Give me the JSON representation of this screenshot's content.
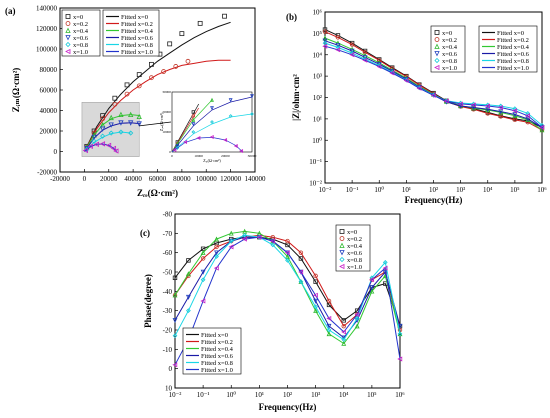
{
  "series_names": [
    "x=0",
    "x=0.2",
    "x=0.4",
    "x=0.6",
    "x=0.8",
    "x=1.0"
  ],
  "fit_names": [
    "Fitted x=0",
    "Fitted x=0.2",
    "Fitted x=0.4",
    "Fitted x=0.6",
    "Fitted x=0.8",
    "Fitted x=1.0"
  ],
  "colors": [
    "#222222",
    "#c0392b",
    "#2eb82e",
    "#1f3fbf",
    "#14c8d8",
    "#c81ec8"
  ],
  "fit_colors": [
    "#111111",
    "#d11a1a",
    "#32c832",
    "#1a1aa6",
    "#19d6e6",
    "#2233cc"
  ],
  "markers": [
    "square",
    "circle",
    "triangle-up",
    "triangle-down",
    "diamond",
    "triangle-left"
  ],
  "chart_data": [
    {
      "panel": "(a)",
      "type": "scatter",
      "xlabel": "Z_re(Ω·cm²)",
      "ylabel": "Z_im(Ω·cm²)",
      "xlim": [
        -20000,
        140000
      ],
      "ylim": [
        -20000,
        140000
      ],
      "xticks": [
        "-20000",
        "0",
        "20000",
        "40000",
        "60000",
        "80000",
        "100000",
        "120000",
        "140000"
      ],
      "yticks": [
        "-20000",
        "0",
        "20000",
        "40000",
        "60000",
        "80000",
        "100000",
        "120000",
        "140000"
      ],
      "legend_placement": "top-left",
      "series": [
        {
          "name": "x=0",
          "points": [
            [
              2000,
              5000
            ],
            [
              8000,
              20000
            ],
            [
              15000,
              35000
            ],
            [
              25000,
              52000
            ],
            [
              35000,
              65000
            ],
            [
              45000,
              75000
            ],
            [
              55000,
              85000
            ],
            [
              62000,
              95000
            ],
            [
              70000,
              105000
            ],
            [
              80000,
              115000
            ],
            [
              95000,
              125000
            ],
            [
              115000,
              132000
            ]
          ],
          "fit": [
            [
              0,
              0
            ],
            [
              10000,
              24000
            ],
            [
              20000,
              42000
            ],
            [
              30000,
              56000
            ],
            [
              40000,
              68000
            ],
            [
              50000,
              78000
            ],
            [
              60000,
              88000
            ],
            [
              70000,
              96000
            ],
            [
              80000,
              104000
            ],
            [
              90000,
              111000
            ],
            [
              100000,
              117000
            ],
            [
              110000,
              122000
            ],
            [
              120000,
              126000
            ]
          ]
        },
        {
          "name": "x=0.2",
          "points": [
            [
              2000,
              4000
            ],
            [
              8000,
              18000
            ],
            [
              15000,
              32000
            ],
            [
              25000,
              46000
            ],
            [
              35000,
              56000
            ],
            [
              45000,
              64000
            ],
            [
              55000,
              72000
            ],
            [
              65000,
              78000
            ],
            [
              75000,
              83000
            ],
            [
              85000,
              88000
            ]
          ],
          "fit": [
            [
              0,
              0
            ],
            [
              10000,
              22000
            ],
            [
              20000,
              38000
            ],
            [
              30000,
              50000
            ],
            [
              40000,
              60000
            ],
            [
              50000,
              68000
            ],
            [
              60000,
              75000
            ],
            [
              70000,
              80000
            ],
            [
              80000,
              84000
            ],
            [
              90000,
              86000
            ],
            [
              100000,
              88000
            ],
            [
              110000,
              89000
            ],
            [
              120000,
              89000
            ]
          ]
        },
        {
          "name": "x=0.4",
          "points": [
            [
              2000,
              4000
            ],
            [
              8000,
              16000
            ],
            [
              15000,
              26000
            ],
            [
              22000,
              33000
            ],
            [
              30000,
              36000
            ],
            [
              38000,
              36000
            ],
            [
              45000,
              34000
            ]
          ],
          "fit": [
            [
              0,
              0
            ],
            [
              8000,
              16000
            ],
            [
              15000,
              26000
            ],
            [
              22000,
              32000
            ],
            [
              30000,
              35000
            ],
            [
              38000,
              36000
            ],
            [
              46000,
              35000
            ]
          ]
        },
        {
          "name": "x=0.6",
          "points": [
            [
              2000,
              3000
            ],
            [
              8000,
              14000
            ],
            [
              15000,
              22000
            ],
            [
              22000,
              26000
            ],
            [
              30000,
              28000
            ],
            [
              38000,
              28000
            ],
            [
              45000,
              27000
            ]
          ],
          "fit": [
            [
              0,
              0
            ],
            [
              8000,
              13000
            ],
            [
              15000,
              21000
            ],
            [
              22000,
              25000
            ],
            [
              30000,
              27500
            ],
            [
              38000,
              28000
            ],
            [
              46000,
              27000
            ]
          ]
        },
        {
          "name": "x=0.8",
          "points": [
            [
              2000,
              2000
            ],
            [
              8000,
              10000
            ],
            [
              15000,
              15000
            ],
            [
              22000,
              18000
            ],
            [
              30000,
              19000
            ],
            [
              38000,
              18000
            ]
          ],
          "fit": [
            [
              0,
              0
            ],
            [
              8000,
              9000
            ],
            [
              15000,
              14000
            ],
            [
              22000,
              17500
            ],
            [
              30000,
              19000
            ],
            [
              38000,
              18000
            ]
          ]
        },
        {
          "name": "x=1.0",
          "points": [
            [
              1000,
              1000
            ],
            [
              5000,
              5000
            ],
            [
              10000,
              7000
            ],
            [
              15000,
              7500
            ],
            [
              20000,
              6000
            ],
            [
              24000,
              3000
            ],
            [
              26000,
              500
            ]
          ],
          "fit": [
            [
              0,
              0
            ],
            [
              5000,
              4800
            ],
            [
              10000,
              7000
            ],
            [
              15000,
              7300
            ],
            [
              20000,
              6000
            ],
            [
              24000,
              3200
            ],
            [
              26500,
              0
            ]
          ]
        }
      ],
      "inset": {
        "xlabel": "Z_re(Ω·cm²)",
        "ylabel": "Z_im(Ω·cm²)",
        "xlim": [
          0,
          30000
        ],
        "ylim": [
          0,
          30000
        ],
        "xticks": [
          "0",
          "10000",
          "20000",
          "30000"
        ],
        "yticks": [
          "0",
          "10000",
          "20000",
          "30000"
        ]
      }
    },
    {
      "panel": "(b)",
      "type": "line",
      "xlabel": "Frequency(Hz)",
      "ylabel": "|Z|/ohm·cm²",
      "xscale": "log",
      "yscale": "log",
      "xlim": [
        0.01,
        1000000
      ],
      "ylim": [
        0.01,
        1000000
      ],
      "xticks": [
        "10⁻²",
        "10⁻¹",
        "10⁰",
        "10¹",
        "10²",
        "10³",
        "10⁴",
        "10⁵",
        "10⁶"
      ],
      "yticks": [
        "10⁻²",
        "10⁻¹",
        "10⁰",
        "10¹",
        "10²",
        "10³",
        "10⁴",
        "10⁵",
        "10⁶"
      ],
      "legend_placement": "top-right",
      "series": [
        {
          "name": "x=0",
          "x": [
            0.01,
            0.03,
            0.1,
            0.3,
            1,
            3,
            10,
            30,
            100,
            300,
            1000,
            3000,
            10000,
            30000,
            100000,
            300000,
            1000000
          ],
          "y": [
            150000,
            80000,
            35000,
            15000,
            6000,
            2500,
            1000,
            400,
            160,
            70,
            40,
            30,
            20,
            14,
            10,
            8,
            4
          ]
        },
        {
          "name": "x=0.2",
          "x": [
            0.01,
            0.03,
            0.1,
            0.3,
            1,
            3,
            10,
            30,
            100,
            300,
            1000,
            3000,
            10000,
            30000,
            100000,
            300000,
            1000000
          ],
          "y": [
            120000,
            65000,
            30000,
            13000,
            5500,
            2300,
            950,
            380,
            150,
            65,
            38,
            28,
            18,
            13,
            9,
            7,
            3
          ]
        },
        {
          "name": "x=0.4",
          "x": [
            0.01,
            0.03,
            0.1,
            0.3,
            1,
            3,
            10,
            30,
            100,
            300,
            1000,
            3000,
            10000,
            30000,
            100000,
            300000,
            1000000
          ],
          "y": [
            60000,
            35000,
            18000,
            9000,
            4200,
            1900,
            800,
            330,
            140,
            65,
            42,
            32,
            26,
            20,
            14,
            9,
            3
          ]
        },
        {
          "name": "x=0.6",
          "x": [
            0.01,
            0.03,
            0.1,
            0.3,
            1,
            3,
            10,
            30,
            100,
            300,
            1000,
            3000,
            10000,
            30000,
            100000,
            300000,
            1000000
          ],
          "y": [
            45000,
            28000,
            15000,
            7500,
            3600,
            1700,
            720,
            300,
            130,
            62,
            40,
            34,
            28,
            22,
            16,
            10,
            4
          ]
        },
        {
          "name": "x=0.8",
          "x": [
            0.01,
            0.03,
            0.1,
            0.3,
            1,
            3,
            10,
            30,
            100,
            300,
            1000,
            3000,
            10000,
            30000,
            100000,
            300000,
            1000000
          ],
          "y": [
            35000,
            22000,
            12000,
            6200,
            3100,
            1500,
            650,
            280,
            130,
            70,
            55,
            50,
            45,
            40,
            30,
            18,
            5
          ]
        },
        {
          "name": "x=1.0",
          "x": [
            0.01,
            0.03,
            0.1,
            0.3,
            1,
            3,
            10,
            30,
            100,
            300,
            1000,
            3000,
            10000,
            30000,
            100000,
            300000,
            1000000
          ],
          "y": [
            25000,
            17000,
            10000,
            5500,
            2800,
            1400,
            620,
            270,
            125,
            68,
            50,
            45,
            40,
            34,
            24,
            14,
            4
          ]
        }
      ]
    },
    {
      "panel": "(c)",
      "type": "line",
      "xlabel": "Frequency(Hz)",
      "ylabel": "Phase(degree)",
      "xscale": "log",
      "xlim": [
        0.01,
        1000000
      ],
      "ylim": [
        10,
        -80
      ],
      "xticks": [
        "10⁻²",
        "10⁻¹",
        "10⁰",
        "10¹",
        "10²",
        "10³",
        "10⁴",
        "10⁵",
        "10⁶"
      ],
      "yticks": [
        "-80",
        "-70",
        "-60",
        "-50",
        "-40",
        "-30",
        "-20",
        "-10",
        "0",
        "10"
      ],
      "legend_placement": "bottom-left",
      "series": [
        {
          "name": "x=0",
          "x": [
            0.01,
            0.03,
            0.1,
            0.3,
            1,
            3,
            10,
            30,
            100,
            300,
            1000,
            3000,
            10000,
            30000,
            100000,
            300000,
            1000000
          ],
          "y": [
            -47,
            -56,
            -62,
            -65,
            -67,
            -68,
            -68,
            -67,
            -64,
            -57,
            -45,
            -33,
            -25,
            -30,
            -42,
            -44,
            -22
          ]
        },
        {
          "name": "x=0.2",
          "x": [
            0.01,
            0.03,
            0.1,
            0.3,
            1,
            3,
            10,
            30,
            100,
            300,
            1000,
            3000,
            10000,
            30000,
            100000,
            300000,
            1000000
          ],
          "y": [
            -38,
            -48,
            -57,
            -63,
            -66,
            -68,
            -69,
            -68,
            -66,
            -60,
            -48,
            -35,
            -22,
            -28,
            -46,
            -50,
            -20
          ]
        },
        {
          "name": "x=0.4",
          "x": [
            0.01,
            0.03,
            0.1,
            0.3,
            1,
            3,
            10,
            30,
            100,
            300,
            1000,
            3000,
            10000,
            30000,
            100000,
            300000,
            1000000
          ],
          "y": [
            -38,
            -49,
            -60,
            -67,
            -70,
            -71,
            -70,
            -66,
            -58,
            -45,
            -30,
            -18,
            -13,
            -22,
            -40,
            -48,
            -18
          ]
        },
        {
          "name": "x=0.6",
          "x": [
            0.01,
            0.03,
            0.1,
            0.3,
            1,
            3,
            10,
            30,
            100,
            300,
            1000,
            3000,
            10000,
            30000,
            100000,
            300000,
            1000000
          ],
          "y": [
            -25,
            -37,
            -50,
            -60,
            -66,
            -68,
            -68,
            -66,
            -60,
            -50,
            -35,
            -22,
            -16,
            -25,
            -42,
            -50,
            -22
          ]
        },
        {
          "name": "x=0.8",
          "x": [
            0.01,
            0.03,
            0.1,
            0.3,
            1,
            3,
            10,
            30,
            100,
            300,
            1000,
            3000,
            10000,
            30000,
            100000,
            300000,
            1000000
          ],
          "y": [
            -17,
            -30,
            -46,
            -58,
            -66,
            -69,
            -68,
            -64,
            -56,
            -45,
            -32,
            -20,
            -15,
            -26,
            -47,
            -55,
            -18
          ]
        },
        {
          "name": "x=1.0",
          "x": [
            0.01,
            0.03,
            0.1,
            0.3,
            1,
            3,
            10,
            30,
            100,
            300,
            1000,
            3000,
            10000,
            30000,
            100000,
            300000,
            1000000
          ],
          "y": [
            -2,
            -15,
            -35,
            -52,
            -63,
            -67,
            -68,
            -66,
            -60,
            -50,
            -38,
            -26,
            -19,
            -28,
            -46,
            -52,
            -5
          ]
        }
      ]
    }
  ]
}
